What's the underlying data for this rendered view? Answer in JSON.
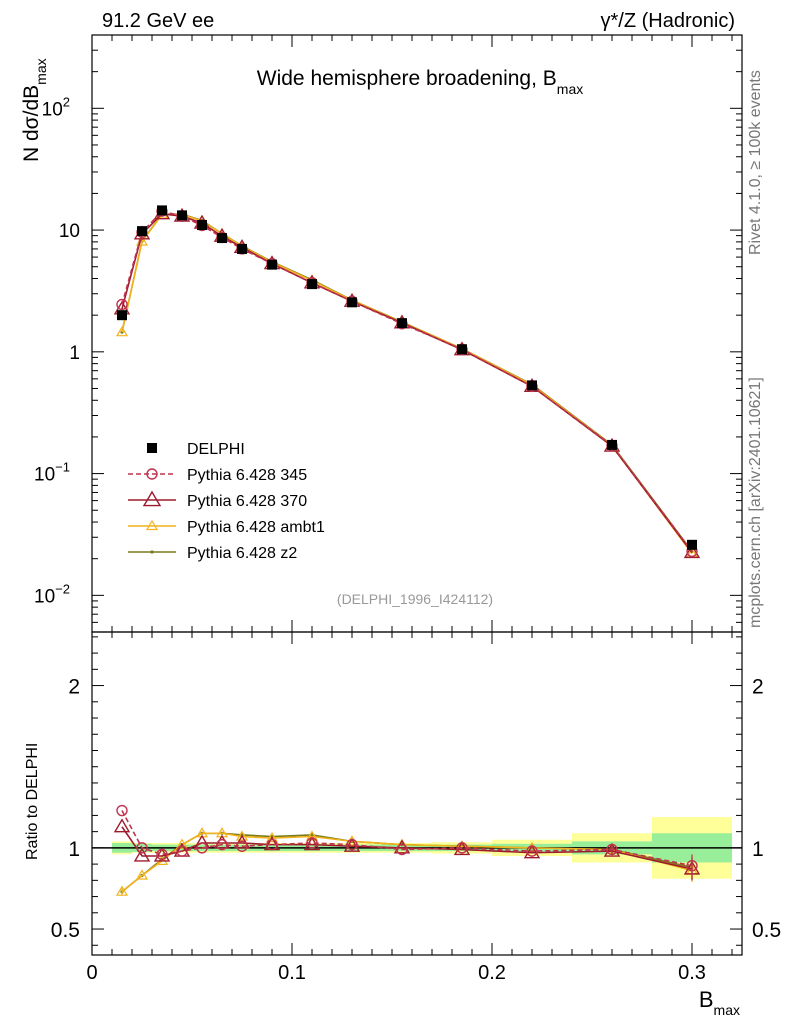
{
  "header": {
    "left": "91.2 GeV ee",
    "right": "γ*/Z (Hadronic)"
  },
  "side_labels": {
    "top": "Rivet 4.1.0, ≥ 100k events",
    "bottom": "mcplots.cern.ch [arXiv:2401.10621]"
  },
  "colors": {
    "data": "#000000",
    "p345": "#c0334f",
    "p370": "#9e1b2e",
    "ambt1": "#f2b21b",
    "z2": "#7a7a18",
    "band_inner": "#99ee99",
    "band_outer": "#ffff99"
  },
  "chart_data": [
    {
      "id": "main",
      "type": "line",
      "title": "Wide hemisphere broadening, B",
      "title_sub": "max",
      "watermark": "(DELPHI_1996_I424112)",
      "ylabel_pre": "N  dσ/dB",
      "ylabel_sub": "max",
      "yscale": "log",
      "xlim": [
        0,
        0.325
      ],
      "ylim": [
        0.005,
        400
      ],
      "y_ticks": [
        {
          "value": 0.01,
          "base": "10",
          "exp": "−2"
        },
        {
          "value": 0.1,
          "base": "10",
          "exp": "−1"
        },
        {
          "value": 1,
          "base": "1",
          "exp": ""
        },
        {
          "value": 10,
          "base": "10",
          "exp": ""
        },
        {
          "value": 100,
          "base": "10",
          "exp": "2"
        }
      ],
      "x": [
        0.015,
        0.025,
        0.035,
        0.045,
        0.055,
        0.065,
        0.075,
        0.09,
        0.11,
        0.13,
        0.155,
        0.185,
        0.22,
        0.26,
        0.3
      ],
      "data_name": "DELPHI",
      "data_values": [
        2.0,
        9.8,
        14.5,
        13.2,
        11.0,
        8.6,
        7.0,
        5.2,
        3.6,
        2.55,
        1.72,
        1.05,
        0.53,
        0.172,
        0.026
      ],
      "series": [
        {
          "key": "p345",
          "name": "Pythia 6.428 345",
          "marker": "circle",
          "dash": true,
          "values": [
            2.45,
            9.6,
            14.3,
            13.0,
            10.9,
            8.7,
            7.0,
            5.3,
            3.7,
            2.6,
            1.7,
            1.05,
            0.52,
            0.17,
            0.023
          ]
        },
        {
          "key": "p370",
          "name": "Pythia 6.428 370",
          "marker": "triangle",
          "dash": false,
          "values": [
            2.25,
            9.3,
            13.6,
            13.0,
            11.4,
            8.9,
            7.2,
            5.3,
            3.68,
            2.6,
            1.73,
            1.04,
            0.52,
            0.168,
            0.0225
          ]
        },
        {
          "key": "ambt1",
          "name": "Pythia 6.428 ambt1",
          "marker": "triangle-small",
          "dash": false,
          "values": [
            1.45,
            8.05,
            13.4,
            13.4,
            11.9,
            9.3,
            7.35,
            5.45,
            3.85,
            2.65,
            1.75,
            1.06,
            0.535,
            0.17,
            0.022
          ]
        },
        {
          "key": "z2",
          "name": "Pythia 6.428 z2",
          "marker": "dot",
          "dash": false,
          "values": [
            1.45,
            8.1,
            13.5,
            13.5,
            12.0,
            9.35,
            7.4,
            5.5,
            3.9,
            2.66,
            1.76,
            1.06,
            0.54,
            0.172,
            0.023
          ]
        }
      ]
    },
    {
      "id": "ratio",
      "type": "line",
      "ylabel": "Ratio to DELPHI",
      "xlabel": "B",
      "xlabel_sub": "max",
      "xlim": [
        0,
        0.325
      ],
      "ylim": [
        0.34,
        2.33
      ],
      "y_ticks": [
        {
          "value": 0.5,
          "label": "0.5"
        },
        {
          "value": 1,
          "label": "1"
        },
        {
          "value": 2,
          "label": "2"
        }
      ],
      "x_ticks": [
        {
          "value": 0,
          "label": "0"
        },
        {
          "value": 0.1,
          "label": "0.1"
        },
        {
          "value": 0.2,
          "label": "0.2"
        },
        {
          "value": 0.3,
          "label": "0.3"
        }
      ],
      "bin_edges": [
        0.01,
        0.02,
        0.03,
        0.04,
        0.05,
        0.06,
        0.07,
        0.08,
        0.1,
        0.12,
        0.14,
        0.17,
        0.2,
        0.24,
        0.28,
        0.32
      ],
      "band_inner": [
        0.03,
        0.025,
        0.02,
        0.02,
        0.02,
        0.02,
        0.02,
        0.02,
        0.02,
        0.02,
        0.02,
        0.02,
        0.025,
        0.04,
        0.09
      ],
      "band_outer": [
        0.04,
        0.03,
        0.03,
        0.03,
        0.03,
        0.03,
        0.03,
        0.03,
        0.03,
        0.03,
        0.03,
        0.035,
        0.05,
        0.09,
        0.19
      ],
      "x": [
        0.015,
        0.025,
        0.035,
        0.045,
        0.055,
        0.065,
        0.075,
        0.09,
        0.11,
        0.13,
        0.155,
        0.185,
        0.22,
        0.26,
        0.3
      ],
      "series": [
        {
          "key": "p345",
          "values": [
            1.23,
            1.0,
            0.96,
            0.98,
            1.0,
            1.02,
            1.01,
            1.02,
            1.03,
            1.02,
            0.99,
            1.0,
            0.98,
            0.99,
            0.89
          ],
          "err": [
            0,
            0,
            0,
            0,
            0,
            0,
            0,
            0,
            0,
            0,
            0,
            0,
            0,
            0.02,
            0.07
          ]
        },
        {
          "key": "p370",
          "values": [
            1.13,
            0.95,
            0.95,
            0.98,
            1.03,
            1.03,
            1.03,
            1.02,
            1.02,
            1.01,
            1.0,
            0.99,
            0.97,
            0.98,
            0.87
          ],
          "err": [
            0,
            0,
            0,
            0,
            0,
            0,
            0,
            0,
            0,
            0,
            0,
            0,
            0,
            0.02,
            0.07
          ]
        },
        {
          "key": "ambt1",
          "values": [
            0.73,
            0.83,
            0.92,
            1.02,
            1.09,
            1.09,
            1.07,
            1.06,
            1.07,
            1.04,
            1.02,
            1.01,
            1.0,
            0.99,
            0.86
          ],
          "err": [
            0.02,
            0,
            0,
            0,
            0,
            0,
            0,
            0,
            0,
            0,
            0,
            0,
            0,
            0.03,
            0.07
          ]
        },
        {
          "key": "z2",
          "values": [
            0.73,
            0.83,
            0.93,
            1.02,
            1.09,
            1.09,
            1.08,
            1.07,
            1.08,
            1.04,
            1.02,
            1.01,
            1.0,
            0.99,
            0.88
          ],
          "err": [
            0.02,
            0,
            0,
            0,
            0,
            0,
            0,
            0,
            0,
            0,
            0,
            0,
            0,
            0.03,
            0.07
          ]
        }
      ]
    }
  ]
}
